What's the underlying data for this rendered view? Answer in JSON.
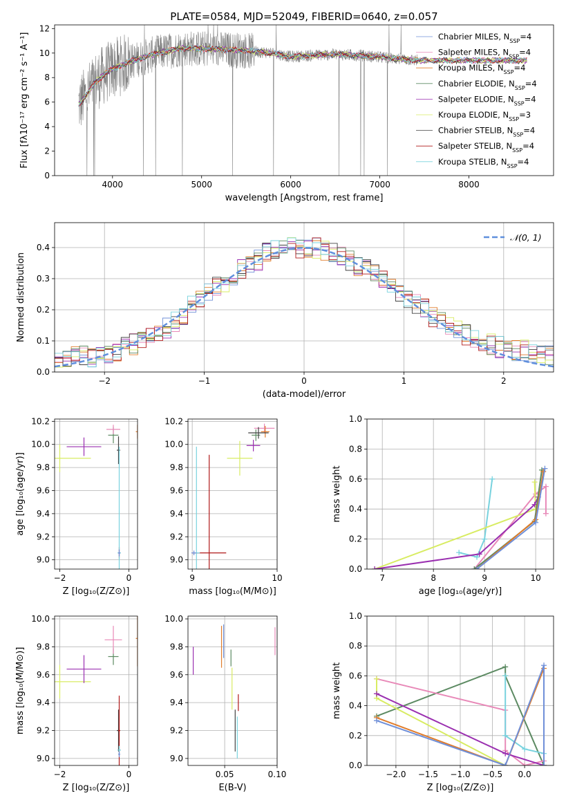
{
  "colors": {
    "chabrier_miles": "#6f8fd8",
    "salpeter_miles": "#e889b8",
    "kroupa_miles": "#e07c2b",
    "chabrier_elodie": "#5c8a62",
    "salpeter_elodie": "#9a2fb0",
    "kroupa_elodie": "#d8ec62",
    "chabrier_stelib": "#404040",
    "salpeter_stelib": "#b01818",
    "kroupa_stelib": "#78d2de",
    "data": "#808080",
    "gauss": "#5f8fdc"
  },
  "chart_data": [
    {
      "id": "spectrum",
      "type": "line",
      "title": "PLATE=0584, MJD=52049, FIBERID=0640, z=0.057",
      "xlabel": "wavelength [Angstrom, rest frame]",
      "ylabel": "Flux [fλ10⁻¹⁷ erg cm⁻² s⁻¹ A⁻¹]",
      "xlim": [
        3350,
        8950
      ],
      "ylim": [
        0,
        12.3
      ],
      "xticks": [
        4000,
        5000,
        6000,
        7000,
        8000
      ],
      "yticks": [
        0,
        2,
        4,
        6,
        8,
        10,
        12
      ],
      "grid": false,
      "legend_position": "top-right",
      "legend": [
        "Chabrier MILES, N_SSP=4",
        "Salpeter MILES, N_SSP=4",
        "Kroupa MILES, N_SSP=4",
        "Chabrier ELODIE, N_SSP=4",
        "Salpeter ELODIE, N_SSP=4",
        "Kroupa ELODIE, N_SSP=3",
        "Chabrier STELIB, N_SSP=4",
        "Salpeter STELIB, N_SSP=4",
        "Kroupa STELIB, N_SSP=4"
      ],
      "legend_html": [
        "Chabrier MILES, N<tspan baseline-shift='sub' font-size='8'>SSP</tspan>=4",
        "Salpeter MILES, N<tspan baseline-shift='sub' font-size='8'>SSP</tspan>=4",
        "Kroupa MILES, N<tspan baseline-shift='sub' font-size='8'>SSP</tspan>=4",
        "Chabrier ELODIE, N<tspan baseline-shift='sub' font-size='8'>SSP</tspan>=4",
        "Salpeter ELODIE, N<tspan baseline-shift='sub' font-size='8'>SSP</tspan>=4",
        "Kroupa ELODIE, N<tspan baseline-shift='sub' font-size='8'>SSP</tspan>=3",
        "Chabrier STELIB, N<tspan baseline-shift='sub' font-size='8'>SSP</tspan>=4",
        "Salpeter STELIB, N<tspan baseline-shift='sub' font-size='8'>SSP</tspan>=4",
        "Kroupa STELIB, N<tspan baseline-shift='sub' font-size='8'>SSP</tspan>=4"
      ],
      "data_range": [
        3620,
        7420
      ],
      "continuum_points": [
        [
          3620,
          5.8
        ],
        [
          3700,
          6.5
        ],
        [
          3800,
          7.6
        ],
        [
          3900,
          8.2
        ],
        [
          4000,
          8.7
        ],
        [
          4200,
          9.3
        ],
        [
          4500,
          10.0
        ],
        [
          4800,
          10.4
        ],
        [
          5200,
          10.3
        ],
        [
          5500,
          10.2
        ],
        [
          5800,
          10.0
        ],
        [
          6000,
          9.7
        ],
        [
          6200,
          9.8
        ],
        [
          6500,
          9.9
        ],
        [
          6800,
          9.8
        ],
        [
          7100,
          9.6
        ],
        [
          7420,
          9.4
        ]
      ],
      "model_range": [
        3620,
        8650
      ]
    },
    {
      "id": "residuals",
      "type": "step-histogram",
      "xlabel": "(data-model)/error",
      "ylabel": "Normed distribution",
      "xlim": [
        -2.5,
        2.5
      ],
      "ylim": [
        0,
        0.48
      ],
      "xticks": [
        -2,
        -1,
        0,
        1,
        2
      ],
      "yticks": [
        0.0,
        0.1,
        0.2,
        0.3,
        0.4
      ],
      "grid": true,
      "legend_position": "top-right",
      "gauss_label": "𝒩(0, 1)",
      "bin_width": 0.1,
      "bins_base": [
        0.04,
        0.04,
        0.05,
        0.05,
        0.05,
        0.06,
        0.06,
        0.07,
        0.08,
        0.09,
        0.1,
        0.11,
        0.12,
        0.14,
        0.16,
        0.18,
        0.21,
        0.23,
        0.25,
        0.27,
        0.29,
        0.31,
        0.33,
        0.35,
        0.36,
        0.38,
        0.39,
        0.4,
        0.4,
        0.4,
        0.4,
        0.4,
        0.39,
        0.38,
        0.37,
        0.36,
        0.34,
        0.33,
        0.32,
        0.3,
        0.28,
        0.26,
        0.24,
        0.22,
        0.2,
        0.18,
        0.16,
        0.14,
        0.13,
        0.12,
        0.11,
        0.1,
        0.09,
        0.08,
        0.08,
        0.07,
        0.07,
        0.06,
        0.06,
        0.05
      ]
    },
    {
      "id": "age_vs_Z",
      "type": "errorbar",
      "xlabel": "Z [log₁₀(Z/Z⊙)]",
      "ylabel": "age  [log₁₀(age/yr)]",
      "xlim": [
        -2.15,
        0.25
      ],
      "ylim": [
        8.92,
        10.22
      ],
      "xticks": [
        -2,
        0
      ],
      "yticks": [
        9.0,
        9.2,
        9.4,
        9.6,
        9.8,
        10.0,
        10.2
      ],
      "grid": true,
      "points": [
        {
          "model": "kroupa_elodie",
          "x": -2.0,
          "xerr": 0.9,
          "y": 9.88,
          "yerr": 0.12
        },
        {
          "model": "salpeter_elodie",
          "x": -1.3,
          "xerr": 0.5,
          "y": 9.98,
          "yerr": 0.08
        },
        {
          "model": "chabrier_elodie",
          "x": -0.45,
          "xerr": 0.15,
          "y": 10.08,
          "yerr": 0.07
        },
        {
          "model": "salpeter_miles",
          "x": -0.45,
          "xerr": 0.2,
          "y": 10.13,
          "yerr": 0.04
        },
        {
          "model": "kroupa_miles",
          "x": 0.25,
          "xerr": 0.05,
          "y": 10.11,
          "yerr": 0.06
        },
        {
          "model": "chabrier_stelib",
          "x": -0.3,
          "xerr": 0.05,
          "y": 9.95,
          "yerr": 0.12
        },
        {
          "model": "salpeter_stelib",
          "x": -0.28,
          "xerr": 0.03,
          "y": 9.06,
          "yerr": 0.05
        },
        {
          "model": "kroupa_stelib",
          "x": -0.28,
          "xerr": 0.05,
          "y": 9.06,
          "yerr": 0.92
        },
        {
          "model": "chabrier_miles",
          "x": -0.28,
          "xerr": 0.03,
          "y": 9.06,
          "yerr": 0.03
        }
      ]
    },
    {
      "id": "age_vs_mass",
      "type": "errorbar",
      "xlabel": "mass [log₁₀(M/M⊙)]",
      "xlim": [
        8.95,
        10.0
      ],
      "ylim": [
        8.92,
        10.22
      ],
      "xticks": [
        9,
        10
      ],
      "yticks": [
        9.0,
        9.2,
        9.4,
        9.6,
        9.8,
        10.0,
        10.2
      ],
      "grid": true,
      "points": [
        {
          "model": "kroupa_elodie",
          "x": 9.56,
          "xerr": 0.15,
          "y": 9.88,
          "yerr": 0.15
        },
        {
          "model": "salpeter_elodie",
          "x": 9.72,
          "xerr": 0.08,
          "y": 9.99,
          "yerr": 0.05
        },
        {
          "model": "chabrier_elodie",
          "x": 9.75,
          "xerr": 0.05,
          "y": 10.08,
          "yerr": 0.05
        },
        {
          "model": "salpeter_miles",
          "x": 9.85,
          "xerr": 0.12,
          "y": 10.14,
          "yerr": 0.04
        },
        {
          "model": "kroupa_miles",
          "x": 9.86,
          "xerr": 0.05,
          "y": 10.11,
          "yerr": 0.05
        },
        {
          "model": "chabrier_stelib",
          "x": 9.78,
          "xerr": 0.12,
          "y": 10.1,
          "yerr": 0.05
        },
        {
          "model": "salpeter_stelib",
          "x": 9.2,
          "xerr": 0.2,
          "y": 9.06,
          "yerr": 0.85
        },
        {
          "model": "kroupa_stelib",
          "x": 9.05,
          "xerr": 0.04,
          "y": 9.06,
          "yerr": 0.92
        },
        {
          "model": "chabrier_miles",
          "x": 9.02,
          "xerr": 0.03,
          "y": 9.06,
          "yerr": 0.02
        }
      ]
    },
    {
      "id": "weight_vs_age",
      "type": "line",
      "xlabel": "age  [log₁₀(age/yr)]",
      "ylabel": "mass weight",
      "xlim": [
        6.7,
        10.35
      ],
      "ylim": [
        0,
        1.0
      ],
      "xticks": [
        7,
        8,
        9,
        10
      ],
      "yticks": [
        0.0,
        0.2,
        0.4,
        0.6,
        0.8,
        1.0
      ],
      "grid": true,
      "series": [
        {
          "model": "kroupa_stelib",
          "x": [
            8.5,
            8.85,
            9.0,
            9.15
          ],
          "y": [
            0.11,
            0.08,
            0.2,
            0.6
          ]
        },
        {
          "model": "salpeter_miles",
          "x": [
            8.8,
            10.0,
            10.2,
            10.2
          ],
          "y": [
            0.0,
            0.5,
            0.55,
            0.37
          ]
        },
        {
          "model": "kroupa_elodie",
          "x": [
            6.85,
            10.0,
            9.98
          ],
          "y": [
            0.0,
            0.4,
            0.58
          ]
        },
        {
          "model": "salpeter_elodie",
          "x": [
            6.85,
            8.9,
            9.98,
            10.05
          ],
          "y": [
            0.0,
            0.1,
            0.43,
            0.48
          ]
        },
        {
          "model": "chabrier_elodie",
          "x": [
            8.8,
            9.98,
            10.12
          ],
          "y": [
            0.0,
            0.32,
            0.66
          ]
        },
        {
          "model": "kroupa_miles",
          "x": [
            8.85,
            10.0,
            10.15
          ],
          "y": [
            0.0,
            0.33,
            0.65
          ]
        },
        {
          "model": "chabrier_miles",
          "x": [
            8.85,
            10.0,
            10.18
          ],
          "y": [
            0.0,
            0.31,
            0.67
          ]
        }
      ]
    },
    {
      "id": "mass_vs_Z",
      "type": "errorbar",
      "xlabel": "Z [log₁₀(Z/Z⊙)]",
      "ylabel": "mass [log₁₀(M/M⊙)]",
      "xlim": [
        -2.15,
        0.25
      ],
      "ylim": [
        8.95,
        10.02
      ],
      "xticks": [
        -2,
        0
      ],
      "yticks": [
        9.0,
        9.2,
        9.4,
        9.6,
        9.8,
        10.0
      ],
      "grid": true,
      "points": [
        {
          "model": "kroupa_elodie",
          "x": -2.0,
          "xerr": 0.9,
          "y": 9.55,
          "yerr": 0.12
        },
        {
          "model": "salpeter_elodie",
          "x": -1.3,
          "xerr": 0.5,
          "y": 9.64,
          "yerr": 0.1
        },
        {
          "model": "chabrier_elodie",
          "x": -0.45,
          "xerr": 0.15,
          "y": 9.73,
          "yerr": 0.06
        },
        {
          "model": "salpeter_miles",
          "x": -0.45,
          "xerr": 0.25,
          "y": 9.85,
          "yerr": 0.1
        },
        {
          "model": "kroupa_miles",
          "x": 0.25,
          "xerr": 0.05,
          "y": 9.86,
          "yerr": 0.2
        },
        {
          "model": "chabrier_stelib",
          "x": -0.3,
          "xerr": 0.05,
          "y": 9.2,
          "yerr": 0.15
        },
        {
          "model": "salpeter_stelib",
          "x": -0.28,
          "xerr": 0.03,
          "y": 9.2,
          "yerr": 0.25
        },
        {
          "model": "kroupa_stelib",
          "x": -0.28,
          "xerr": 0.05,
          "y": 9.06,
          "yerr": 0.03
        },
        {
          "model": "chabrier_miles",
          "x": -0.28,
          "xerr": 0.03,
          "y": 9.03,
          "yerr": 0.02
        }
      ]
    },
    {
      "id": "mass_vs_ebv",
      "type": "errorbar",
      "xlabel": "E(B-V)",
      "xlim": [
        0.015,
        0.1
      ],
      "ylim": [
        8.95,
        10.02
      ],
      "xticks": [
        0.05,
        0.1
      ],
      "yticks": [
        9.0,
        9.2,
        9.4,
        9.6,
        9.8,
        10.0
      ],
      "grid": true,
      "points": [
        {
          "model": "salpeter_elodie",
          "x": 0.02,
          "xerr": 0,
          "y": 9.7,
          "yerr": 0.1
        },
        {
          "model": "kroupa_miles",
          "x": 0.047,
          "xerr": 0,
          "y": 9.8,
          "yerr": 0.15
        },
        {
          "model": "chabrier_miles",
          "x": 0.049,
          "xerr": 0,
          "y": 9.84,
          "yerr": 0.12
        },
        {
          "model": "chabrier_elodie",
          "x": 0.056,
          "xerr": 0,
          "y": 9.72,
          "yerr": 0.06
        },
        {
          "model": "kroupa_elodie",
          "x": 0.057,
          "xerr": 0,
          "y": 9.5,
          "yerr": 0.15
        },
        {
          "model": "salpeter_miles",
          "x": 0.098,
          "xerr": 0,
          "y": 9.84,
          "yerr": 0.1
        },
        {
          "model": "salpeter_stelib",
          "x": 0.063,
          "xerr": 0,
          "y": 9.4,
          "yerr": 0.06
        },
        {
          "model": "chabrier_stelib",
          "x": 0.06,
          "xerr": 0,
          "y": 9.2,
          "yerr": 0.15
        },
        {
          "model": "kroupa_stelib",
          "x": 0.062,
          "xerr": 0,
          "y": 9.15,
          "yerr": 0.15
        }
      ]
    },
    {
      "id": "weight_vs_Z",
      "type": "line",
      "xlabel": "Z [log₁₀(Z/Z⊙)]",
      "ylabel": "mass weight",
      "xlim": [
        -2.45,
        0.45
      ],
      "ylim": [
        0,
        1.0
      ],
      "xticks": [
        -2.0,
        -1.5,
        -1.0,
        -0.5,
        0.0
      ],
      "yticks": [
        0.0,
        0.2,
        0.4,
        0.6,
        0.8,
        1.0
      ],
      "grid": true,
      "series": [
        {
          "model": "chabrier_elodie",
          "x": [
            -2.3,
            -0.3,
            -0.3,
            0.3
          ],
          "y": [
            0.33,
            0.66,
            0.6,
            0.0
          ]
        },
        {
          "model": "salpeter_miles",
          "x": [
            -2.3,
            -0.3,
            -0.3,
            -0.0,
            0.3
          ],
          "y": [
            0.58,
            0.37,
            0.1,
            0.0,
            0.03
          ]
        },
        {
          "model": "kroupa_elodie",
          "x": [
            -2.3,
            -2.3,
            -0.3
          ],
          "y": [
            0.58,
            0.45,
            0.0
          ]
        },
        {
          "model": "salpeter_elodie",
          "x": [
            -2.3,
            -0.3,
            0.3
          ],
          "y": [
            0.48,
            0.08,
            0.0
          ]
        },
        {
          "model": "kroupa_stelib",
          "x": [
            -0.3,
            -0.3,
            -0.0,
            0.3
          ],
          "y": [
            0.6,
            0.2,
            0.11,
            0.08
          ]
        },
        {
          "model": "kroupa_miles",
          "x": [
            -2.3,
            -0.3,
            0.3,
            0.3
          ],
          "y": [
            0.32,
            0.0,
            0.65,
            0.0
          ]
        },
        {
          "model": "chabrier_miles",
          "x": [
            -2.3,
            -0.3,
            0.3,
            0.3
          ],
          "y": [
            0.3,
            0.0,
            0.67,
            0.0
          ]
        }
      ]
    }
  ]
}
